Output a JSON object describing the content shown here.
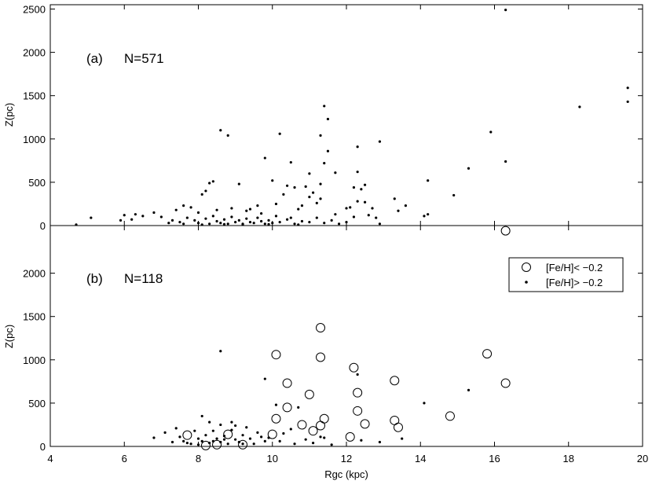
{
  "chart_data": [
    {
      "panel": "a",
      "type": "scatter",
      "annotation": "(a)",
      "n_label": "N=571",
      "xlabel": "",
      "ylabel": "Z(pc)",
      "xlim": [
        4,
        20
      ],
      "ylim": [
        0,
        2550
      ],
      "yticks": [
        0,
        500,
        1000,
        1500,
        2000,
        2500
      ],
      "grid": false,
      "series": [
        {
          "marker": "dot",
          "points": [
            [
              16.3,
              2490
            ],
            [
              19.6,
              1590
            ],
            [
              19.6,
              1430
            ],
            [
              18.3,
              1370
            ],
            [
              15.9,
              1080
            ],
            [
              16.3,
              740
            ],
            [
              15.3,
              660
            ],
            [
              14.9,
              350
            ],
            [
              14.2,
              520
            ],
            [
              14.2,
              130
            ],
            [
              14.1,
              110
            ],
            [
              13.6,
              230
            ],
            [
              13.4,
              170
            ],
            [
              13.3,
              310
            ],
            [
              12.9,
              970
            ],
            [
              12.9,
              20
            ],
            [
              12.8,
              90
            ],
            [
              12.7,
              200
            ],
            [
              12.6,
              120
            ],
            [
              12.5,
              470
            ],
            [
              12.5,
              270
            ],
            [
              12.4,
              420
            ],
            [
              12.3,
              910
            ],
            [
              12.3,
              620
            ],
            [
              12.3,
              280
            ],
            [
              12.2,
              440
            ],
            [
              12.1,
              210
            ],
            [
              12.0,
              200
            ],
            [
              11.7,
              610
            ],
            [
              11.7,
              130
            ],
            [
              11.5,
              1230
            ],
            [
              11.5,
              860
            ],
            [
              11.4,
              1380
            ],
            [
              11.4,
              720
            ],
            [
              11.3,
              1040
            ],
            [
              11.3,
              480
            ],
            [
              11.3,
              310
            ],
            [
              11.2,
              260
            ],
            [
              11.1,
              380
            ],
            [
              11.0,
              600
            ],
            [
              11.0,
              330
            ],
            [
              10.9,
              450
            ],
            [
              10.8,
              230
            ],
            [
              10.7,
              190
            ],
            [
              10.6,
              440
            ],
            [
              10.5,
              730
            ],
            [
              10.4,
              460
            ],
            [
              10.3,
              360
            ],
            [
              10.2,
              1060
            ],
            [
              10.1,
              250
            ],
            [
              10.0,
              520
            ],
            [
              9.8,
              780
            ],
            [
              9.6,
              230
            ],
            [
              9.4,
              190
            ],
            [
              9.1,
              480
            ],
            [
              8.8,
              1040
            ],
            [
              8.6,
              1100
            ],
            [
              8.4,
              510
            ],
            [
              8.3,
              490
            ],
            [
              8.2,
              400
            ],
            [
              8.1,
              360
            ],
            [
              7.8,
              210
            ],
            [
              7.6,
              230
            ],
            [
              7.4,
              180
            ],
            [
              7.0,
              100
            ],
            [
              6.8,
              150
            ],
            [
              6.5,
              110
            ],
            [
              6.3,
              130
            ],
            [
              6.2,
              70
            ],
            [
              6.0,
              120
            ],
            [
              5.9,
              60
            ],
            [
              5.1,
              90
            ],
            [
              4.7,
              10
            ],
            [
              7.3,
              60
            ],
            [
              7.5,
              40
            ],
            [
              7.7,
              90
            ],
            [
              7.9,
              60
            ],
            [
              8.0,
              30
            ],
            [
              8.2,
              80
            ],
            [
              8.3,
              20
            ],
            [
              8.4,
              110
            ],
            [
              8.5,
              50
            ],
            [
              8.6,
              30
            ],
            [
              8.7,
              70
            ],
            [
              8.8,
              20
            ],
            [
              8.9,
              100
            ],
            [
              9.0,
              40
            ],
            [
              9.1,
              60
            ],
            [
              9.2,
              20
            ],
            [
              9.3,
              80
            ],
            [
              9.4,
              40
            ],
            [
              9.5,
              30
            ],
            [
              9.6,
              90
            ],
            [
              9.7,
              50
            ],
            [
              9.8,
              20
            ],
            [
              9.9,
              60
            ],
            [
              10.0,
              30
            ],
            [
              10.2,
              40
            ],
            [
              10.4,
              70
            ],
            [
              10.6,
              20
            ],
            [
              10.8,
              50
            ],
            [
              11.0,
              40
            ],
            [
              11.2,
              90
            ],
            [
              11.4,
              30
            ],
            [
              11.6,
              60
            ],
            [
              11.8,
              20
            ],
            [
              12.0,
              40
            ],
            [
              12.2,
              100
            ],
            [
              8.0,
              150
            ],
            [
              8.5,
              180
            ],
            [
              8.9,
              200
            ],
            [
              9.3,
              170
            ],
            [
              9.7,
              140
            ],
            [
              10.1,
              110
            ],
            [
              10.5,
              90
            ],
            [
              7.2,
              30
            ],
            [
              7.6,
              20
            ],
            [
              8.1,
              10
            ],
            [
              8.7,
              15
            ],
            [
              9.2,
              10
            ],
            [
              9.9,
              15
            ],
            [
              10.7,
              10
            ]
          ]
        }
      ]
    },
    {
      "panel": "b",
      "type": "scatter",
      "annotation": "(b)",
      "n_label": "N=118",
      "xlabel": "Rgc (kpc)",
      "ylabel": "Z(pc)",
      "xlim": [
        4,
        20
      ],
      "ylim": [
        0,
        2550
      ],
      "xticks": [
        4,
        6,
        8,
        10,
        12,
        14,
        16,
        18,
        20
      ],
      "yticks": [
        0,
        500,
        1000,
        1500,
        2000
      ],
      "grid": false,
      "legend": "top-right",
      "series": [
        {
          "name": "[Fe/H]< −0.2",
          "marker": "circle",
          "points": [
            [
              16.3,
              2490
            ],
            [
              15.8,
              1070
            ],
            [
              16.3,
              730
            ],
            [
              14.8,
              350
            ],
            [
              13.4,
              220
            ],
            [
              13.3,
              760
            ],
            [
              13.3,
              300
            ],
            [
              12.5,
              260
            ],
            [
              12.3,
              620
            ],
            [
              12.3,
              410
            ],
            [
              12.2,
              910
            ],
            [
              12.1,
              110
            ],
            [
              11.4,
              320
            ],
            [
              11.3,
              1370
            ],
            [
              11.3,
              1030
            ],
            [
              11.3,
              240
            ],
            [
              11.1,
              180
            ],
            [
              11.0,
              600
            ],
            [
              10.8,
              250
            ],
            [
              10.4,
              730
            ],
            [
              10.4,
              450
            ],
            [
              10.1,
              1060
            ],
            [
              10.1,
              320
            ],
            [
              10.0,
              140
            ],
            [
              9.2,
              20
            ],
            [
              8.8,
              140
            ],
            [
              8.5,
              20
            ],
            [
              8.2,
              10
            ],
            [
              7.7,
              130
            ]
          ]
        },
        {
          "name": "[Fe/H]> −0.2",
          "marker": "dot",
          "points": [
            [
              15.3,
              650
            ],
            [
              14.1,
              500
            ],
            [
              12.3,
              830
            ],
            [
              11.4,
              100
            ],
            [
              10.7,
              450
            ],
            [
              9.8,
              780
            ],
            [
              10.1,
              480
            ],
            [
              8.6,
              1100
            ],
            [
              6.8,
              100
            ],
            [
              7.1,
              160
            ],
            [
              7.3,
              50
            ],
            [
              7.4,
              210
            ],
            [
              7.5,
              110
            ],
            [
              7.6,
              60
            ],
            [
              7.8,
              30
            ],
            [
              7.9,
              180
            ],
            [
              8.0,
              90
            ],
            [
              8.1,
              350
            ],
            [
              8.1,
              60
            ],
            [
              8.2,
              130
            ],
            [
              8.3,
              280
            ],
            [
              8.3,
              40
            ],
            [
              8.4,
              180
            ],
            [
              8.5,
              90
            ],
            [
              8.6,
              250
            ],
            [
              8.6,
              50
            ],
            [
              8.7,
              120
            ],
            [
              8.8,
              30
            ],
            [
              8.9,
              280
            ],
            [
              8.9,
              190
            ],
            [
              9.0,
              80
            ],
            [
              9.0,
              240
            ],
            [
              9.1,
              50
            ],
            [
              9.2,
              130
            ],
            [
              9.3,
              220
            ],
            [
              9.4,
              90
            ],
            [
              9.5,
              30
            ],
            [
              9.6,
              160
            ],
            [
              9.8,
              60
            ],
            [
              9.9,
              100
            ],
            [
              10.2,
              60
            ],
            [
              10.5,
              200
            ],
            [
              10.9,
              80
            ],
            [
              11.3,
              110
            ],
            [
              11.6,
              20
            ],
            [
              7.7,
              40
            ],
            [
              8.0,
              20
            ],
            [
              8.4,
              60
            ],
            [
              8.7,
              80
            ],
            [
              9.2,
              30
            ],
            [
              9.7,
              110
            ],
            [
              10.3,
              150
            ],
            [
              10.6,
              30
            ],
            [
              11.1,
              40
            ],
            [
              12.4,
              70
            ],
            [
              12.9,
              50
            ],
            [
              13.5,
              90
            ]
          ]
        }
      ]
    }
  ]
}
